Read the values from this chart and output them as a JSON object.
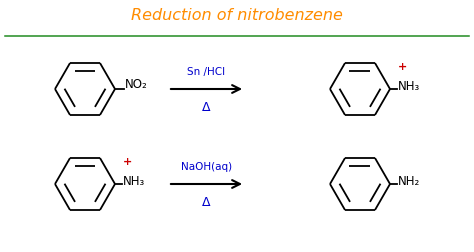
{
  "title": "Reduction of nitrobenzene",
  "title_color": "#FF8C00",
  "title_fontsize": 11.5,
  "bg_color": "#ffffff",
  "separator_color": "#228B22",
  "arrow_color": "#000000",
  "reagent1_line1": "Sn /HCl",
  "reagent1_line2": "Δ",
  "reagent2_line1": "NaOH(aq)",
  "reagent2_line2": "Δ",
  "reagent_color": "#0000CC",
  "label_no2": "NO₂",
  "label_nh3_top": "NH₃",
  "label_nh3_bot": "NH₃",
  "label_nh2": "NH₂",
  "plus_color": "#CC0000",
  "black_color": "#000000",
  "ring_lw": 1.3,
  "figw": 4.74,
  "figh": 2.52
}
